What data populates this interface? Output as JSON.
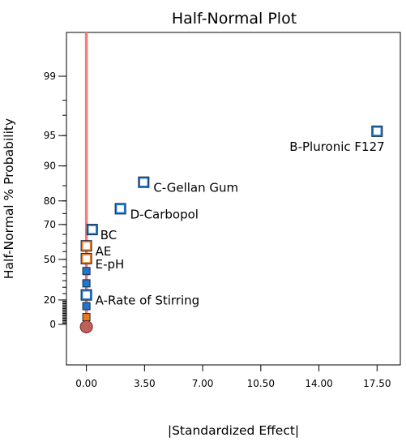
{
  "chart_data": {
    "type": "scatter",
    "title": "Half-Normal Plot",
    "xlabel": "|Standardized Effect|",
    "ylabel": "Half-Normal % Probability",
    "xlim": [
      -1.2,
      18.9
    ],
    "x_ticks": [
      0,
      3.5,
      7,
      10.5,
      14,
      17.5
    ],
    "x_tick_labels": [
      "0.00",
      "3.50",
      "7.00",
      "10.50",
      "14.00",
      "17.50"
    ],
    "y_ticks": [
      0,
      20,
      50,
      70,
      80,
      90,
      95,
      99
    ],
    "y_tick_labels": [
      "0",
      "20",
      "50",
      "70",
      "80",
      "90",
      "95",
      "99"
    ],
    "grid": false,
    "reference_line": {
      "x": 0,
      "color": "#f08080"
    },
    "colors": {
      "positive": "#1e78d0",
      "negative": "#e87a1e",
      "error": "#1e78d0",
      "origin": "#c0605a",
      "outline": "#1a2a40"
    },
    "points": [
      {
        "label": "B-Pluronic F127",
        "x": 17.5,
        "prob": 95.5,
        "kind": "positive",
        "labeled": true
      },
      {
        "label": "C-Gellan Gum",
        "x": 3.45,
        "prob": 86.0,
        "kind": "positive",
        "labeled": true
      },
      {
        "label": "D-Carbopol",
        "x": 2.05,
        "prob": 77.0,
        "kind": "positive",
        "labeled": true
      },
      {
        "label": "BC",
        "x": 0.35,
        "prob": 67.5,
        "kind": "positive",
        "labeled": true
      },
      {
        "label": "AE",
        "x": 0.0,
        "prob": 58.5,
        "kind": "negative",
        "labeled": true
      },
      {
        "label": "E-pH",
        "x": 0.0,
        "prob": 50.5,
        "kind": "negative",
        "labeled": true
      },
      {
        "label": "",
        "x": 0.0,
        "prob": 42.0,
        "kind": "error",
        "labeled": false
      },
      {
        "label": "",
        "x": 0.0,
        "prob": 33.0,
        "kind": "error",
        "labeled": false
      },
      {
        "label": "A-Rate of Stirring",
        "x": 0.0,
        "prob": 24.0,
        "kind": "positive",
        "labeled": true
      },
      {
        "label": "",
        "x": 0.0,
        "prob": 15.0,
        "kind": "error",
        "labeled": false
      },
      {
        "label": "",
        "x": 0.0,
        "prob": 6.0,
        "kind": "negative",
        "labeled": false
      },
      {
        "label": "",
        "x": 0.0,
        "prob": 0.0,
        "kind": "origin",
        "labeled": false
      }
    ]
  }
}
